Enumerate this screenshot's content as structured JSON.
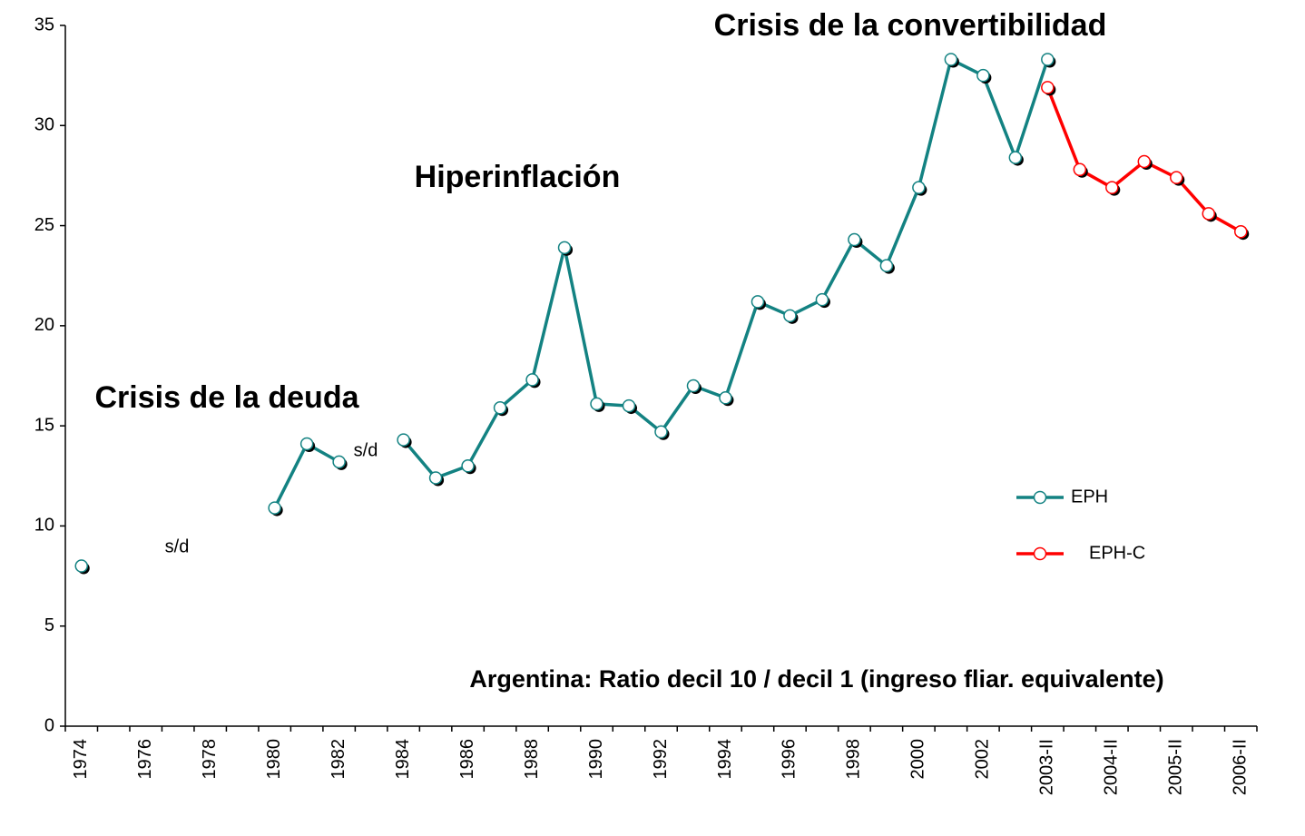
{
  "chart_data": {
    "type": "line",
    "title": "Argentina: Ratio decil 10 / decil 1 (ingreso fliar. equivalente)",
    "annotations": [
      "Crisis de la deuda",
      "Hiperinflación",
      "Crisis de la convertibilidad",
      "s/d",
      "s/d"
    ],
    "categories": [
      "1974",
      null,
      "1976",
      null,
      "1978",
      null,
      "1980",
      null,
      "1982",
      null,
      "1984",
      null,
      "1986",
      null,
      "1988",
      null,
      "1990",
      null,
      "1992",
      null,
      "1994",
      null,
      "1996",
      null,
      "1998",
      null,
      "2000",
      null,
      "2002",
      null,
      "2003-II",
      null,
      "2004-II",
      null,
      "2005-II",
      null,
      "2006-II"
    ],
    "series": [
      {
        "name": "EPH",
        "color": "#138282",
        "values": [
          8.0,
          null,
          null,
          null,
          null,
          null,
          10.9,
          14.1,
          13.2,
          null,
          14.3,
          12.4,
          13.0,
          15.9,
          17.3,
          23.9,
          16.1,
          16.0,
          14.7,
          17.0,
          16.4,
          21.2,
          20.5,
          21.3,
          24.3,
          23.0,
          26.9,
          33.3,
          32.5,
          28.4,
          33.3,
          null,
          null,
          null,
          null,
          null,
          null
        ]
      },
      {
        "name": "EPH-C",
        "color": "#ff0000",
        "values": [
          null,
          null,
          null,
          null,
          null,
          null,
          null,
          null,
          null,
          null,
          null,
          null,
          null,
          null,
          null,
          null,
          null,
          null,
          null,
          null,
          null,
          null,
          null,
          null,
          null,
          null,
          null,
          null,
          null,
          null,
          31.9,
          27.8,
          26.9,
          28.2,
          27.4,
          25.6,
          24.7
        ]
      }
    ],
    "ylim": [
      0,
      35
    ],
    "yticks": [
      0,
      5,
      10,
      15,
      20,
      25,
      30,
      35
    ],
    "grid": false,
    "legend": "right"
  }
}
